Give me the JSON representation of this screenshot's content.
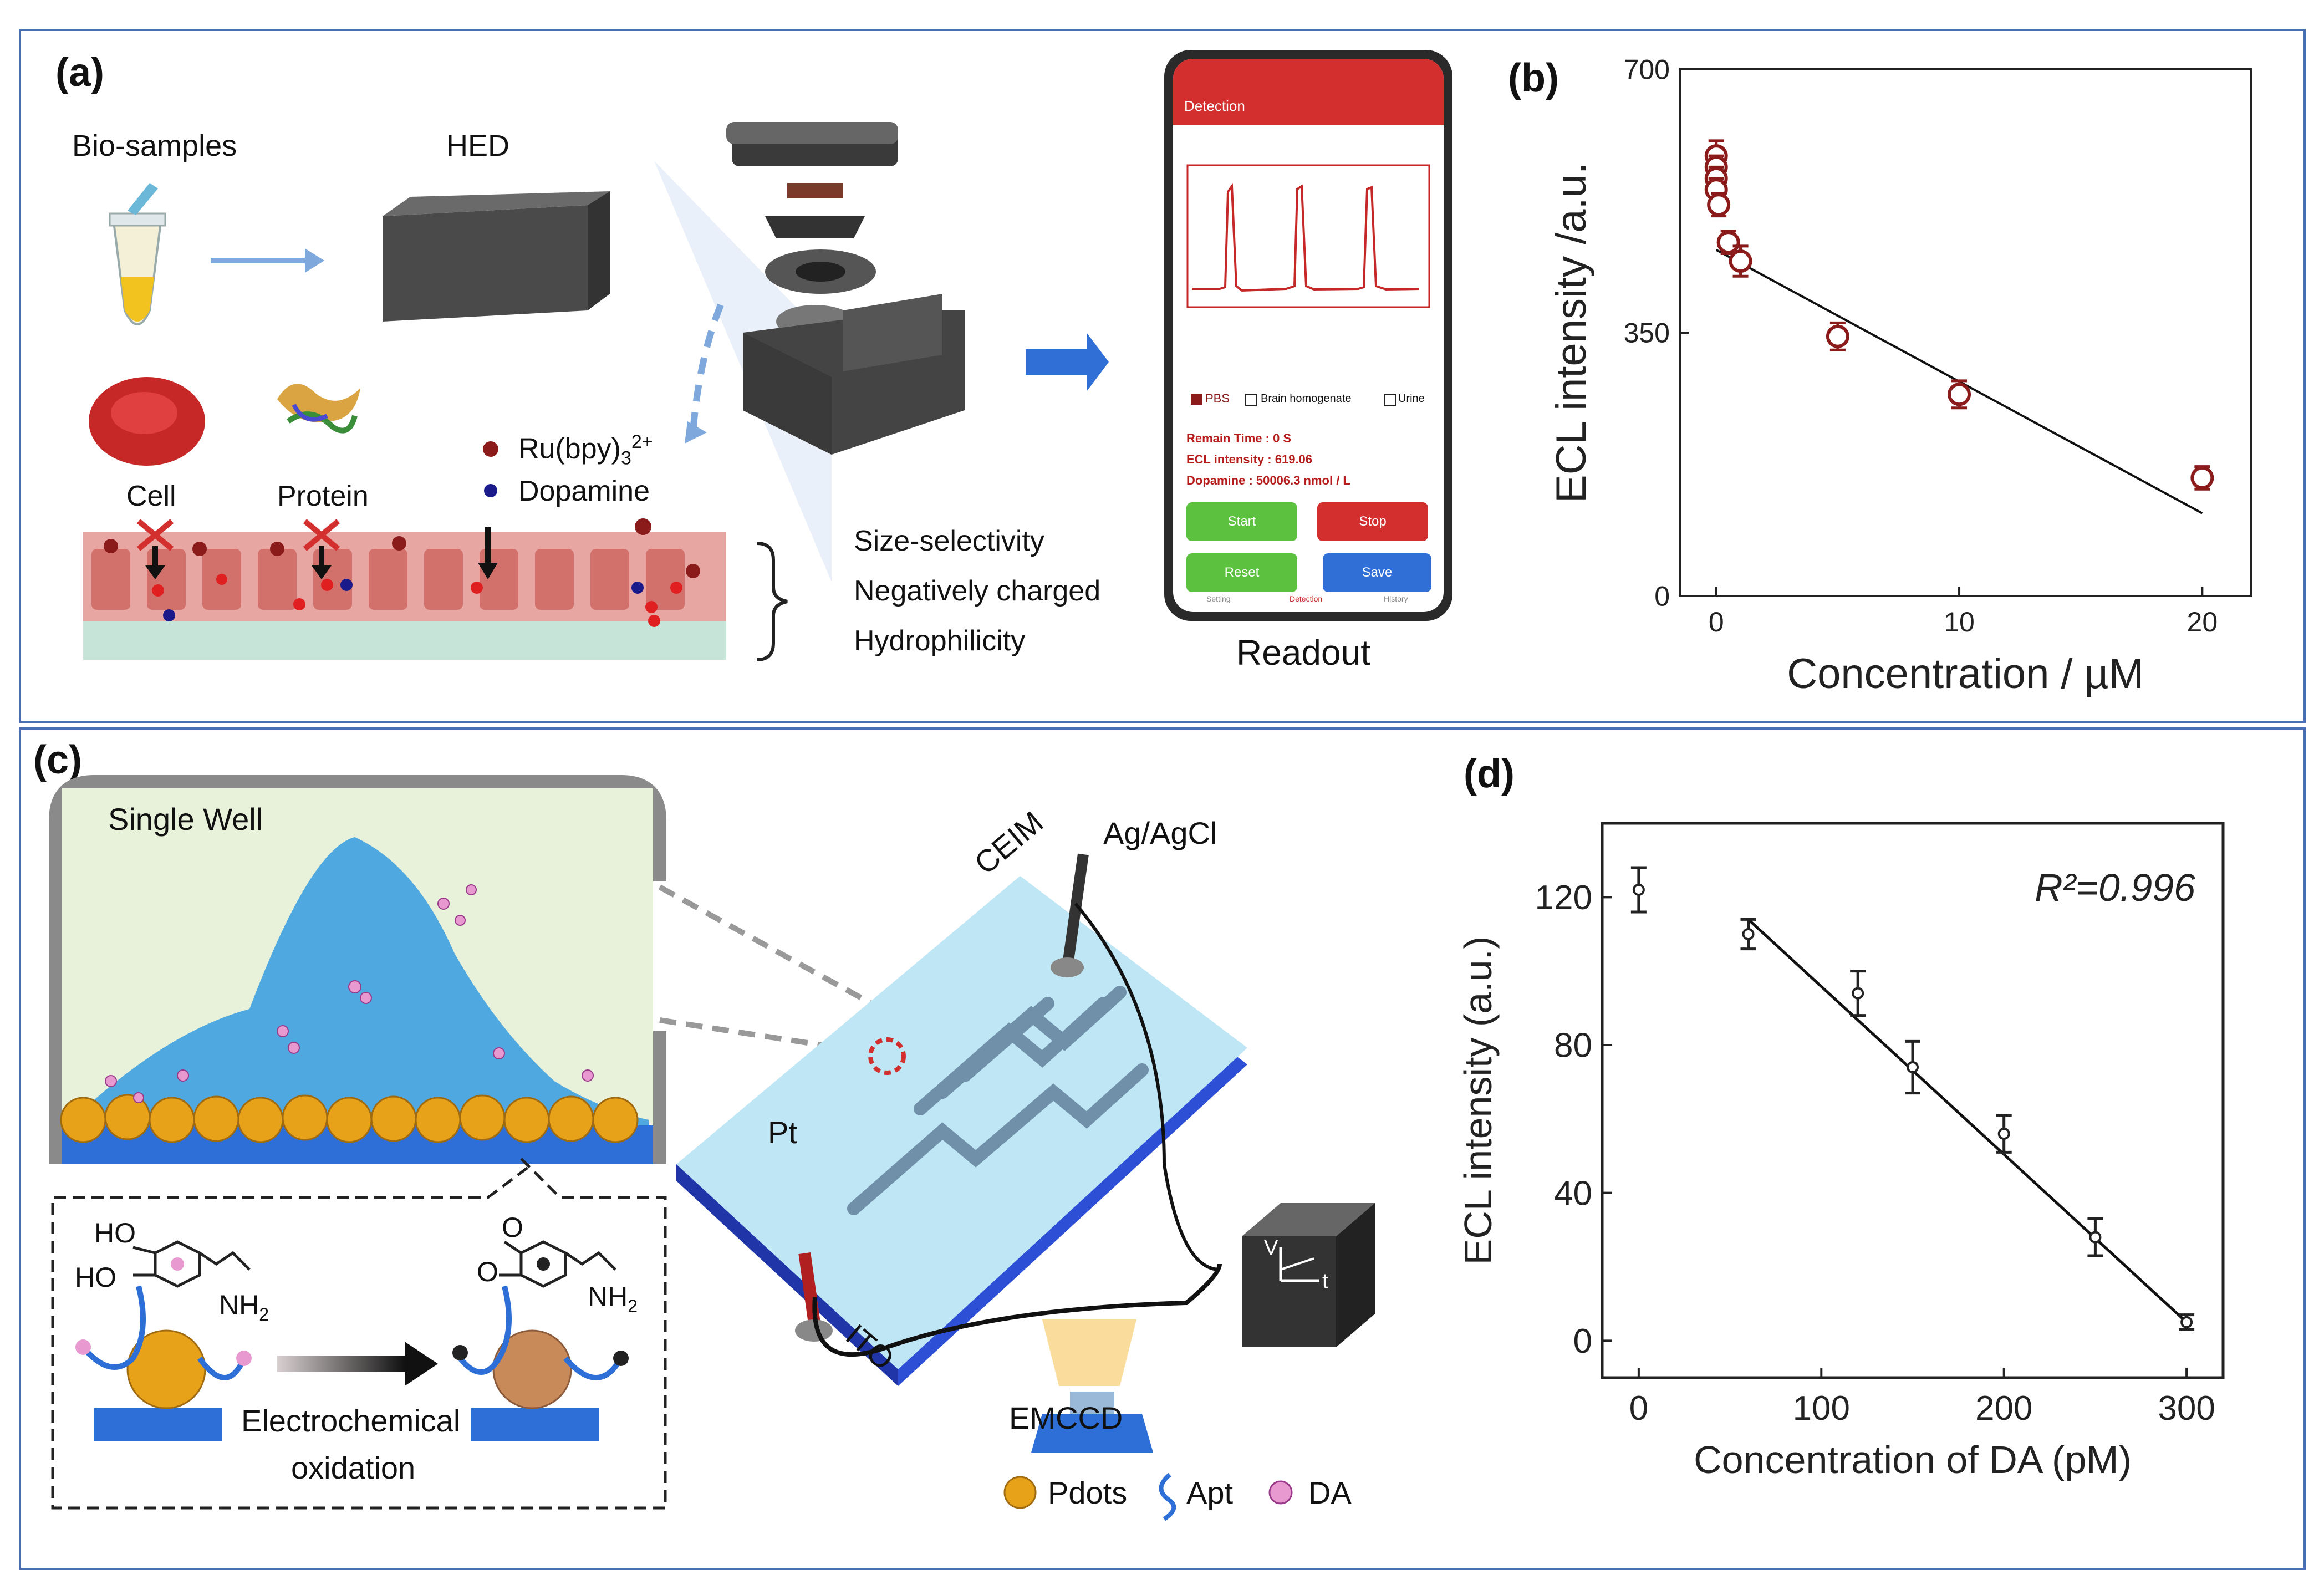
{
  "panel_a": {
    "label": "(a)",
    "bio_samples": "Bio-samples",
    "hed": "HED",
    "cell": "Cell",
    "protein": "Protein",
    "ru_legend": "Ru(bpy)",
    "ru_sub": "3",
    "ru_sup": "2+",
    "dopamine_legend": "Dopamine",
    "properties": [
      "Size-selectivity",
      "Negatively charged",
      "Hydrophilicity"
    ],
    "readout": "Readout",
    "phone": {
      "header": "Detection",
      "checkboxes": [
        "PBS",
        "Brain homogenate",
        "Urine"
      ],
      "status": [
        "Remain Time : 0 S",
        "ECL intensity : 619.06",
        "Dopamine : 50006.3 nmol / L"
      ],
      "buttons": {
        "start": "Start",
        "stop": "Stop",
        "reset": "Reset",
        "save": "Save"
      },
      "nav": [
        "Setting",
        "Detection",
        "History"
      ]
    }
  },
  "panel_c": {
    "label": "(c)",
    "single_well": "Single Well",
    "ag_agcl": "Ag/AgCl",
    "ceim": "CEIM",
    "ito": "ITO",
    "pt": "Pt",
    "emccd": "EMCCD",
    "v_label": "V",
    "t_label": "t",
    "ho1": "HO",
    "ho2": "HO",
    "nh2": "NH",
    "nh2_sub": "2",
    "o1": "O",
    "o2": "O",
    "oxidation": [
      "Electrochemical",
      "oxidation"
    ],
    "legend": [
      "Pdots",
      "Apt",
      "DA"
    ]
  },
  "chart_data": [
    {
      "panel": "(b)",
      "type": "scatter",
      "title": "",
      "xlabel": "Concentration / µM",
      "ylabel": "ECL intensity /a.u.",
      "xlim": [
        -1.5,
        22
      ],
      "ylim": [
        0,
        700
      ],
      "xticks": [
        0,
        10,
        20
      ],
      "yticks": [
        0,
        350,
        700
      ],
      "points": [
        {
          "x": 0,
          "y": 585,
          "err": 20
        },
        {
          "x": 0,
          "y": 570,
          "err": 15
        },
        {
          "x": 0,
          "y": 555,
          "err": 15
        },
        {
          "x": 0,
          "y": 540,
          "err": 15
        },
        {
          "x": 0.1,
          "y": 520,
          "err": 15
        },
        {
          "x": 0.5,
          "y": 470,
          "err": 15
        },
        {
          "x": 1,
          "y": 445,
          "err": 20
        },
        {
          "x": 5,
          "y": 345,
          "err": 18
        },
        {
          "x": 10,
          "y": 268,
          "err": 18
        },
        {
          "x": 20,
          "y": 157,
          "err": 15
        }
      ],
      "fit": {
        "x": [
          0,
          20
        ],
        "y": [
          460,
          110
        ]
      }
    },
    {
      "panel": "(d)",
      "type": "scatter",
      "title": "",
      "xlabel": "Concentration of DA (pM)",
      "ylabel": "ECL intensity (a.u.)",
      "xlim": [
        -20,
        320
      ],
      "ylim": [
        -10,
        140
      ],
      "xticks": [
        0,
        100,
        200,
        300
      ],
      "yticks": [
        0,
        40,
        80,
        120
      ],
      "annotation": "R²=0.996",
      "points": [
        {
          "x": 0,
          "y": 122,
          "err": 6
        },
        {
          "x": 60,
          "y": 110,
          "err": 4
        },
        {
          "x": 120,
          "y": 94,
          "err": 6
        },
        {
          "x": 150,
          "y": 74,
          "err": 7
        },
        {
          "x": 200,
          "y": 56,
          "err": 5
        },
        {
          "x": 250,
          "y": 28,
          "err": 5
        },
        {
          "x": 300,
          "y": 5,
          "err": 2
        }
      ],
      "fit": {
        "x": [
          60,
          300
        ],
        "y": [
          114,
          5
        ]
      }
    }
  ],
  "colors": {
    "frame": "#4a6fb3",
    "phone_red": "#d32f2f",
    "green_btn": "#5cc13e",
    "blue_btn": "#2f6fd6",
    "marker_red": "#8b1a1a",
    "arrow_blue": "#2f6fd6"
  }
}
